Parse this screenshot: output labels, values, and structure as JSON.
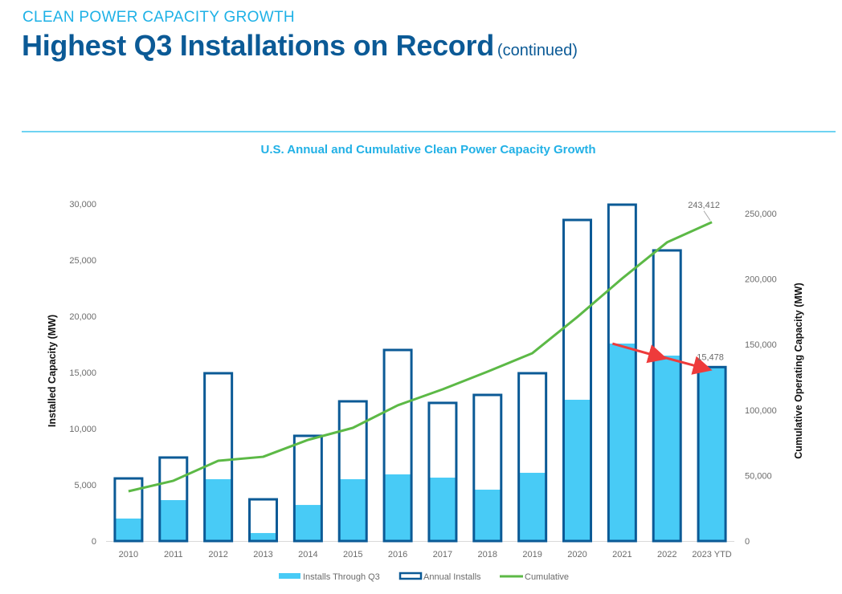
{
  "header": {
    "kicker": "CLEAN POWER CAPACITY GROWTH",
    "title": "Highest Q3 Installations on Record",
    "title_suffix": "(continued)"
  },
  "colors": {
    "installs_q3": "#48cbf6",
    "annual_outline": "#0b5a96",
    "cumulative": "#5cb946",
    "arrow": "#ee3b3b",
    "divider": "#6fd3f2",
    "kicker": "#1eb1e6",
    "title": "#0b5a96"
  },
  "chart_data": {
    "type": "bar",
    "title": "U.S. Annual and Cumulative Clean Power Capacity Growth",
    "categories": [
      "2010",
      "2011",
      "2012",
      "2013",
      "2014",
      "2015",
      "2016",
      "2017",
      "2018",
      "2019",
      "2020",
      "2021",
      "2022",
      "2023 YTD"
    ],
    "series": [
      {
        "name": "Installs Through Q3",
        "kind": "bar-fill",
        "axis": "left",
        "values": [
          2000,
          3640,
          5500,
          710,
          3210,
          5500,
          5930,
          5640,
          4570,
          6070,
          12570,
          17570,
          16500,
          15478
        ]
      },
      {
        "name": "Annual Installs",
        "kind": "bar-outline",
        "axis": "left",
        "values": [
          5570,
          7430,
          14930,
          3710,
          9360,
          12430,
          17000,
          12290,
          13000,
          14930,
          28570,
          29930,
          25860,
          15478
        ]
      },
      {
        "name": "Cumulative",
        "kind": "line",
        "axis": "right",
        "values": [
          38000,
          46000,
          61300,
          64300,
          77200,
          86400,
          103600,
          115800,
          129300,
          143400,
          171000,
          200400,
          228000,
          243412
        ]
      }
    ],
    "data_labels": [
      {
        "series": "Cumulative",
        "category": "2023 YTD",
        "text": "243,412"
      },
      {
        "series": "Annual Installs",
        "category": "2023 YTD",
        "text": "15,478"
      }
    ],
    "annotations": [
      {
        "type": "arrow",
        "from_category": "2021",
        "to_category": "2022",
        "note": "red arrow showing decline in installs through Q3"
      },
      {
        "type": "arrow",
        "from_category": "2022",
        "to_category": "2023 YTD",
        "note": "red arrow showing decline in installs through Q3"
      }
    ],
    "ylabel": "Installed Capacity (MW)",
    "y2label": "Cumulative Operating Capacity (MW)",
    "ylim": [
      0,
      30000
    ],
    "yticks": [
      "0",
      "5,000",
      "10,000",
      "15,000",
      "20,000",
      "25,000",
      "30,000"
    ],
    "ytick_values": [
      0,
      5000,
      10000,
      15000,
      20000,
      25000,
      30000
    ],
    "y2lim": [
      0,
      257000
    ],
    "y2ticks": [
      "0",
      "50,000",
      "100,000",
      "150,000",
      "200,000",
      "250,000"
    ],
    "y2tick_values": [
      0,
      50000,
      100000,
      150000,
      200000,
      250000
    ],
    "grid": false,
    "legend": {
      "position": "bottom",
      "items": [
        "Installs Through Q3",
        "Annual Installs",
        "Cumulative"
      ]
    }
  }
}
